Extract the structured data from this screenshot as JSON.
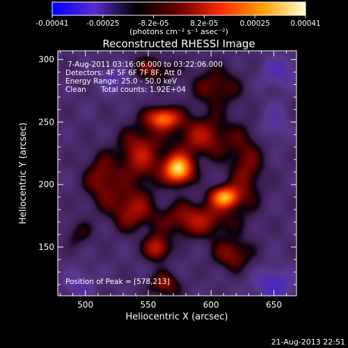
{
  "colorbar": {
    "ticks": [
      "-0.00041",
      "-0.00025",
      "-8.2e-05",
      "8.2e-05",
      "0.00025",
      "0.00041"
    ],
    "units": "(photons cm⁻² s⁻¹ asec⁻²)",
    "colors": [
      "#0000ff",
      "#5a2ad0",
      "#000000",
      "#6a0000",
      "#ff2a00",
      "#ffa000",
      "#ffffd0"
    ]
  },
  "chart_data": {
    "type": "heatmap",
    "title": "Reconstructed RHESSI Image",
    "xlabel": "Heliocentric X (arcsec)",
    "ylabel": "Heliocentric Y (arcsec)",
    "xlim": [
      478,
      668
    ],
    "ylim": [
      111,
      307
    ],
    "xticks": [
      500,
      550,
      600,
      650
    ],
    "yticks": [
      150,
      200,
      250,
      300
    ],
    "peak": [
      578,
      213
    ],
    "sources": [
      {
        "x": 574,
        "y": 212,
        "sx": 8,
        "sy": 8,
        "amp": 1.0
      },
      {
        "x": 611,
        "y": 190,
        "sx": 8,
        "sy": 6,
        "amp": 0.82
      },
      {
        "x": 562,
        "y": 253,
        "sx": 9,
        "sy": 6,
        "amp": 0.72
      },
      {
        "x": 544,
        "y": 224,
        "sx": 12,
        "sy": 16,
        "amp": 0.45
      },
      {
        "x": 593,
        "y": 238,
        "sx": 16,
        "sy": 12,
        "amp": 0.42
      },
      {
        "x": 588,
        "y": 172,
        "sx": 20,
        "sy": 10,
        "amp": 0.44
      },
      {
        "x": 537,
        "y": 180,
        "sx": 12,
        "sy": 12,
        "amp": 0.4
      },
      {
        "x": 513,
        "y": 204,
        "sx": 10,
        "sy": 15,
        "amp": 0.35
      },
      {
        "x": 604,
        "y": 278,
        "sx": 14,
        "sy": 12,
        "amp": 0.3
      },
      {
        "x": 628,
        "y": 212,
        "sx": 10,
        "sy": 22,
        "amp": 0.33
      },
      {
        "x": 557,
        "y": 149,
        "sx": 7,
        "sy": 7,
        "amp": 0.52
      },
      {
        "x": 617,
        "y": 144,
        "sx": 11,
        "sy": 9,
        "amp": 0.36
      },
      {
        "x": 552,
        "y": 292,
        "sx": 14,
        "sy": 8,
        "amp": 0.3
      },
      {
        "x": 563,
        "y": 120,
        "sx": 9,
        "sy": 7,
        "amp": 0.36
      },
      {
        "x": 495,
        "y": 160,
        "sx": 8,
        "sy": 8,
        "amp": 0.2
      },
      {
        "x": 655,
        "y": 290,
        "sx": 10,
        "sy": 8,
        "amp": -0.3
      },
      {
        "x": 650,
        "y": 120,
        "sx": 10,
        "sy": 8,
        "amp": -0.42
      },
      {
        "x": 495,
        "y": 120,
        "sx": 8,
        "sy": 8,
        "amp": -0.25
      },
      {
        "x": 525,
        "y": 285,
        "sx": 10,
        "sy": 8,
        "amp": -0.28
      },
      {
        "x": 650,
        "y": 250,
        "sx": 8,
        "sy": 10,
        "amp": -0.22
      }
    ]
  },
  "info": {
    "line1": "7-Aug-2011 03:16:06.000 to 03:22:06.000",
    "line2": "Detectors: 4F 5F 6F 7F 8F, Att 0",
    "line3": "Energy Range: 25.0 - 50.0 keV",
    "line4_a": "Clean",
    "line4_b": "Total counts: 1.92E+04",
    "peak_label": "Position of Peak = [578,213]"
  },
  "footer": {
    "timestamp": "21-Aug-2013 22:51"
  }
}
